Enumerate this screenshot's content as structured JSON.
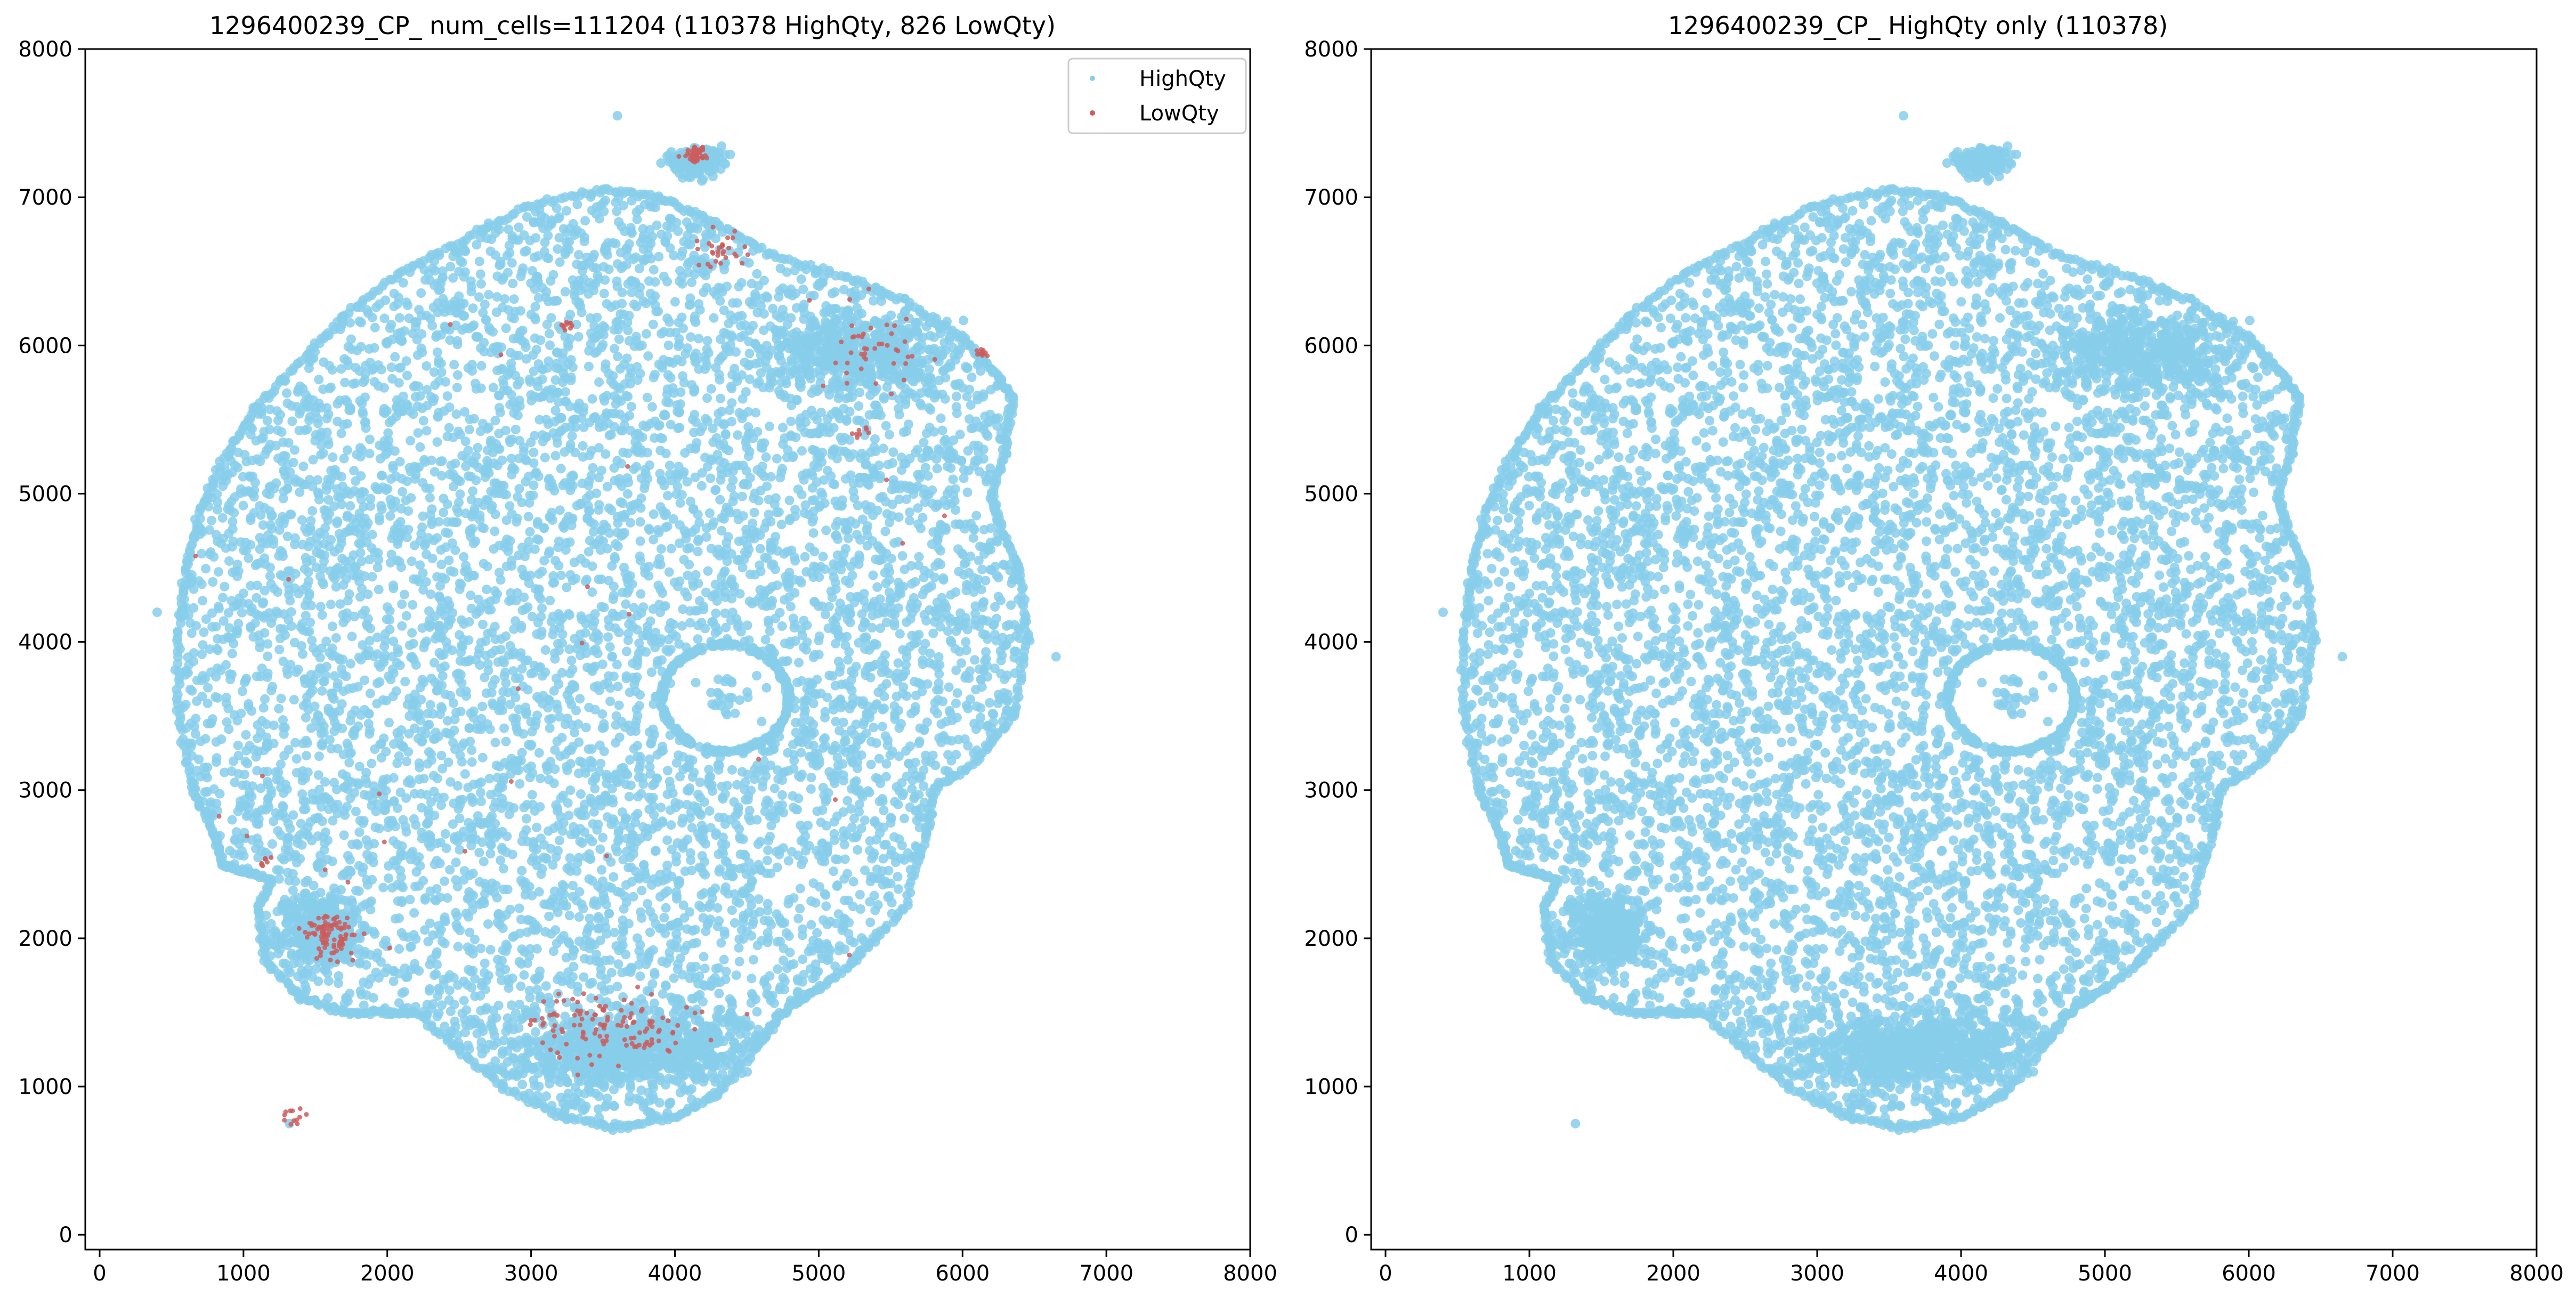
{
  "chart_data": [
    {
      "type": "scatter",
      "title": "1296400239_CP_ num_cells=111204 (110378 HighQty, 826 LowQty)",
      "xlim": [
        -100,
        8000
      ],
      "ylim": [
        -100,
        8000
      ],
      "xticks": [
        0,
        1000,
        2000,
        3000,
        4000,
        5000,
        6000,
        7000,
        8000
      ],
      "yticks": [
        0,
        1000,
        2000,
        3000,
        4000,
        5000,
        6000,
        7000,
        8000
      ],
      "grid": false,
      "legend": {
        "position": "top-right",
        "entries": [
          "HighQty",
          "LowQty"
        ]
      },
      "series": [
        {
          "name": "HighQty",
          "color": "#87CEEB",
          "count": 110378
        },
        {
          "name": "LowQty",
          "color": "#CD5C5C",
          "count": 826
        }
      ]
    },
    {
      "type": "scatter",
      "title": "1296400239_CP_ HighQty only (110378)",
      "xlim": [
        -100,
        8000
      ],
      "ylim": [
        -100,
        8000
      ],
      "xticks": [
        0,
        1000,
        2000,
        3000,
        4000,
        5000,
        6000,
        7000,
        8000
      ],
      "yticks": [
        0,
        1000,
        2000,
        3000,
        4000,
        5000,
        6000,
        7000,
        8000
      ],
      "grid": false,
      "series": [
        {
          "name": "HighQty",
          "color": "#87CEEB",
          "count": 110378
        }
      ]
    }
  ]
}
